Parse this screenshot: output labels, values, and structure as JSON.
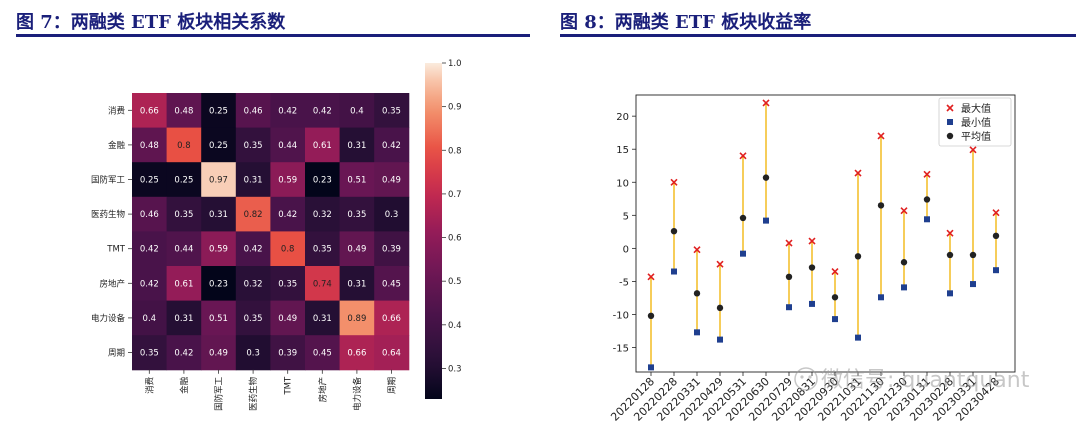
{
  "figures": {
    "left_title": "图 7：两融类 ETF 板块相关系数",
    "right_title": "图 8：两融类 ETF 板块收益率",
    "watermark": "微信号: quantquant"
  },
  "colors": {
    "title": "#1a1f7a",
    "max_marker": "#e02020",
    "min_marker": "#1f3f8f",
    "mean_marker": "#222222",
    "range_line": "#f2b200"
  },
  "chart_data": [
    {
      "type": "heatmap",
      "categories": [
        "消费",
        "金融",
        "国防军工",
        "医药生物",
        "TMT",
        "房地产",
        "电力设备",
        "周期"
      ],
      "matrix": [
        [
          0.66,
          0.48,
          0.25,
          0.46,
          0.42,
          0.42,
          0.4,
          0.35
        ],
        [
          0.48,
          0.8,
          0.25,
          0.35,
          0.44,
          0.61,
          0.31,
          0.42
        ],
        [
          0.25,
          0.25,
          0.97,
          0.31,
          0.59,
          0.23,
          0.51,
          0.49
        ],
        [
          0.46,
          0.35,
          0.31,
          0.82,
          0.42,
          0.32,
          0.35,
          0.3
        ],
        [
          0.42,
          0.44,
          0.59,
          0.42,
          0.8,
          0.35,
          0.49,
          0.39
        ],
        [
          0.42,
          0.61,
          0.23,
          0.32,
          0.35,
          0.74,
          0.31,
          0.45
        ],
        [
          0.4,
          0.31,
          0.51,
          0.35,
          0.49,
          0.31,
          0.89,
          0.66
        ],
        [
          0.35,
          0.42,
          0.49,
          0.3,
          0.39,
          0.45,
          0.66,
          0.64
        ]
      ],
      "colorbar": {
        "min": 0.23,
        "max": 1.0,
        "ticks": [
          0.3,
          0.4,
          0.5,
          0.6,
          0.7,
          0.8,
          0.9,
          1.0
        ]
      }
    },
    {
      "type": "scatter",
      "categories": [
        "20220128",
        "20220228",
        "20220331",
        "20220429",
        "20220531",
        "20220630",
        "20220729",
        "20220831",
        "20220930",
        "20221031",
        "20221130",
        "20221230",
        "20230131",
        "20230228",
        "20230331",
        "20230428"
      ],
      "series": [
        {
          "name": "最大值",
          "values": [
            -4.3,
            10.0,
            -0.2,
            -2.4,
            14.0,
            22.0,
            0.8,
            1.1,
            -3.5,
            11.4,
            17.0,
            5.7,
            11.2,
            2.3,
            14.9,
            5.4
          ]
        },
        {
          "name": "最小值",
          "values": [
            -18.0,
            -3.5,
            -12.7,
            -13.8,
            -0.8,
            4.2,
            -8.9,
            -8.4,
            -10.7,
            -13.5,
            -7.4,
            -5.9,
            4.4,
            -6.8,
            -5.4,
            -3.3
          ]
        },
        {
          "name": "平均值",
          "values": [
            -10.2,
            2.6,
            -6.8,
            -9.0,
            4.6,
            10.7,
            -4.3,
            -2.9,
            -7.4,
            -1.2,
            6.5,
            -2.1,
            7.4,
            -1.0,
            -1.0,
            1.9
          ]
        }
      ],
      "ylim": [
        -18.7,
        23.2
      ],
      "yticks": [
        -15,
        -10,
        -5,
        0,
        5,
        10,
        15,
        20
      ],
      "legend": "top-right"
    }
  ]
}
